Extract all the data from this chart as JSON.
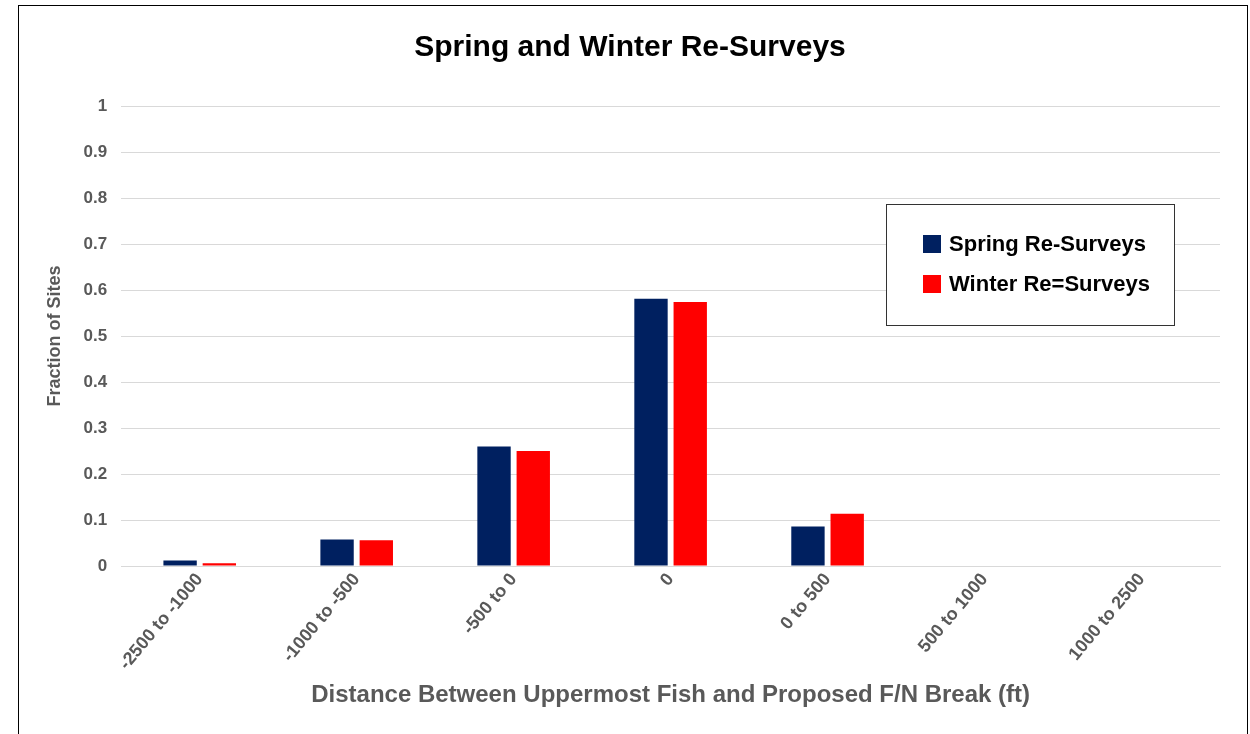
{
  "chart_data": {
    "type": "bar",
    "title": "Spring and Winter Re-Surveys",
    "xlabel": "Distance Between Uppermost Fish and Proposed F/N Break (ft)",
    "ylabel": "Fraction of Sites",
    "categories": [
      "-2500 to -1000",
      "-1000 to -500",
      "-500 to 0",
      "0",
      "0 to 500",
      "500 to 1000",
      "1000 to 2500"
    ],
    "series": [
      {
        "name": "Spring Re-Surveys",
        "color": "#002060",
        "values": [
          0.012,
          0.058,
          0.26,
          0.581,
          0.086,
          0,
          0
        ]
      },
      {
        "name": "Winter Re=Surveys",
        "color": "#ff0000",
        "values": [
          0.006,
          0.056,
          0.25,
          0.574,
          0.114,
          0,
          0
        ]
      }
    ],
    "ylim": [
      0,
      1
    ],
    "yticks": [
      0,
      0.1,
      0.2,
      0.3,
      0.4,
      0.5,
      0.6,
      0.7,
      0.8,
      0.9,
      1
    ],
    "grid": "y",
    "legend": "top right"
  }
}
